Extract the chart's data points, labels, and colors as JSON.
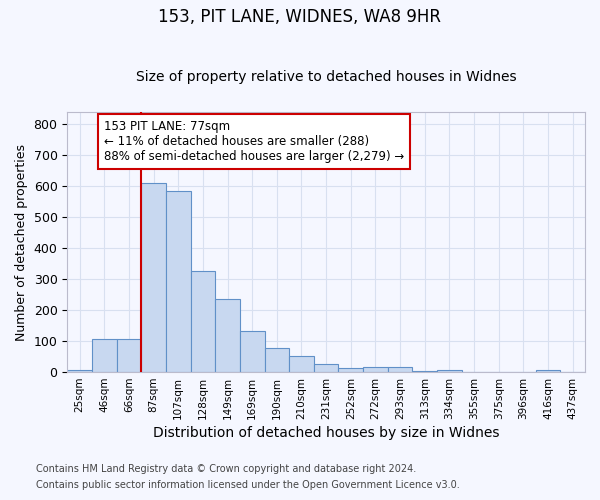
{
  "title1": "153, PIT LANE, WIDNES, WA8 9HR",
  "title2": "Size of property relative to detached houses in Widnes",
  "xlabel": "Distribution of detached houses by size in Widnes",
  "ylabel": "Number of detached properties",
  "categories": [
    "25sqm",
    "46sqm",
    "66sqm",
    "87sqm",
    "107sqm",
    "128sqm",
    "149sqm",
    "169sqm",
    "190sqm",
    "210sqm",
    "231sqm",
    "252sqm",
    "272sqm",
    "293sqm",
    "313sqm",
    "334sqm",
    "355sqm",
    "375sqm",
    "396sqm",
    "416sqm",
    "437sqm"
  ],
  "values": [
    8,
    107,
    107,
    610,
    585,
    327,
    237,
    133,
    77,
    52,
    25,
    13,
    17,
    17,
    5,
    7,
    0,
    0,
    0,
    8,
    0
  ],
  "bar_color": "#c8d8f0",
  "bar_edge_color": "#6090c8",
  "vline_color": "#cc0000",
  "annotation_text": "153 PIT LANE: 77sqm\n← 11% of detached houses are smaller (288)\n88% of semi-detached houses are larger (2,279) →",
  "annotation_box_color": "#ffffff",
  "annotation_box_edge_color": "#cc0000",
  "ylim": [
    0,
    840
  ],
  "yticks": [
    0,
    100,
    200,
    300,
    400,
    500,
    600,
    700,
    800
  ],
  "footer1": "Contains HM Land Registry data © Crown copyright and database right 2024.",
  "footer2": "Contains public sector information licensed under the Open Government Licence v3.0.",
  "background_color": "#f5f7ff",
  "grid_color": "#d8e0f0",
  "title1_fontsize": 12,
  "title2_fontsize": 10,
  "xlabel_fontsize": 10,
  "ylabel_fontsize": 9,
  "footer_fontsize": 7,
  "vline_x_index": 3
}
